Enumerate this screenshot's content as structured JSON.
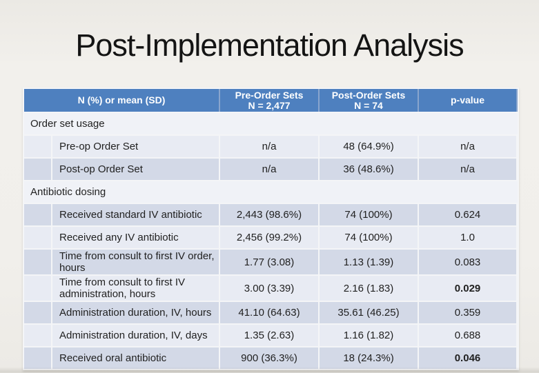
{
  "slide": {
    "title": "Post-Implementation Analysis"
  },
  "table": {
    "header": {
      "col1": "N (%) or mean (SD)",
      "col2_line1": "Pre-Order Sets",
      "col2_line2": "N = 2,477",
      "col3_line1": "Post-Order Sets",
      "col3_line2": "N = 74",
      "col4": "p-value"
    },
    "rows": [
      {
        "type": "section",
        "label": "Order set usage"
      },
      {
        "type": "data",
        "label": "Pre-op Order Set",
        "pre": "n/a",
        "post": "48 (64.9%)",
        "p": "n/a",
        "p_significant": false
      },
      {
        "type": "data",
        "label": "Post-op Order Set",
        "pre": "n/a",
        "post": "36 (48.6%)",
        "p": "n/a",
        "p_significant": false
      },
      {
        "type": "section",
        "label": "Antibiotic dosing"
      },
      {
        "type": "data",
        "label": "Received standard IV antibiotic",
        "pre": "2,443 (98.6%)",
        "post": "74 (100%)",
        "p": "0.624",
        "p_significant": false
      },
      {
        "type": "data",
        "label": "Received any IV antibiotic",
        "pre": "2,456 (99.2%)",
        "post": "74 (100%)",
        "p": "1.0",
        "p_significant": false
      },
      {
        "type": "data",
        "label": "Time from consult to first IV order, hours",
        "pre": "1.77 (3.08)",
        "post": "1.13 (1.39)",
        "p": "0.083",
        "p_significant": false
      },
      {
        "type": "data",
        "label": "Time from consult to first IV administration, hours",
        "pre": "3.00 (3.39)",
        "post": "2.16 (1.83)",
        "p": "0.029",
        "p_significant": true
      },
      {
        "type": "data",
        "label": "Administration duration, IV, hours",
        "pre": "41.10 (64.63)",
        "post": "35.61 (46.25)",
        "p": "0.359",
        "p_significant": false
      },
      {
        "type": "data",
        "label": "Administration duration, IV, days",
        "pre": "1.35 (2.63)",
        "post": "1.16 (1.82)",
        "p": "0.688",
        "p_significant": false
      },
      {
        "type": "data",
        "label": "Received oral antibiotic",
        "pre": "900 (36.3%)",
        "post": "18 (24.3%)",
        "p": "0.046",
        "p_significant": true
      }
    ],
    "colors": {
      "header_bg": "#4e80bf",
      "header_divider": "#89a5cd",
      "header_text": "#ffffff",
      "band_light": "#e8ebf3",
      "band_dark": "#d3d9e7",
      "section_bg": "#f0f2f7",
      "grid_line": "#f4f5f7",
      "text": "#212121"
    }
  }
}
